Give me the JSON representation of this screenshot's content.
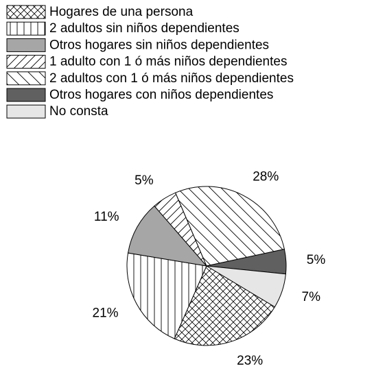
{
  "chart_data": {
    "type": "pie",
    "categories": [
      "Hogares de una persona",
      "2 adultos sin niños dependientes",
      "Otros hogares sin niños dependientes",
      "1 adulto con 1 ó más niños dependientes",
      "2 adultos con 1 ó más niños dependientes",
      "Otros hogares con niños dependientes",
      "No consta"
    ],
    "values": [
      23,
      21,
      11,
      5,
      28,
      5,
      7
    ],
    "value_labels": [
      "23%",
      "21%",
      "11%",
      "5%",
      "28%",
      "5%",
      "7%"
    ],
    "fills": [
      "crosshatch",
      "vertical",
      "#a6a6a6",
      "forward",
      "backward",
      "#606060",
      "#e6e6e6"
    ],
    "legend": "top-left"
  }
}
